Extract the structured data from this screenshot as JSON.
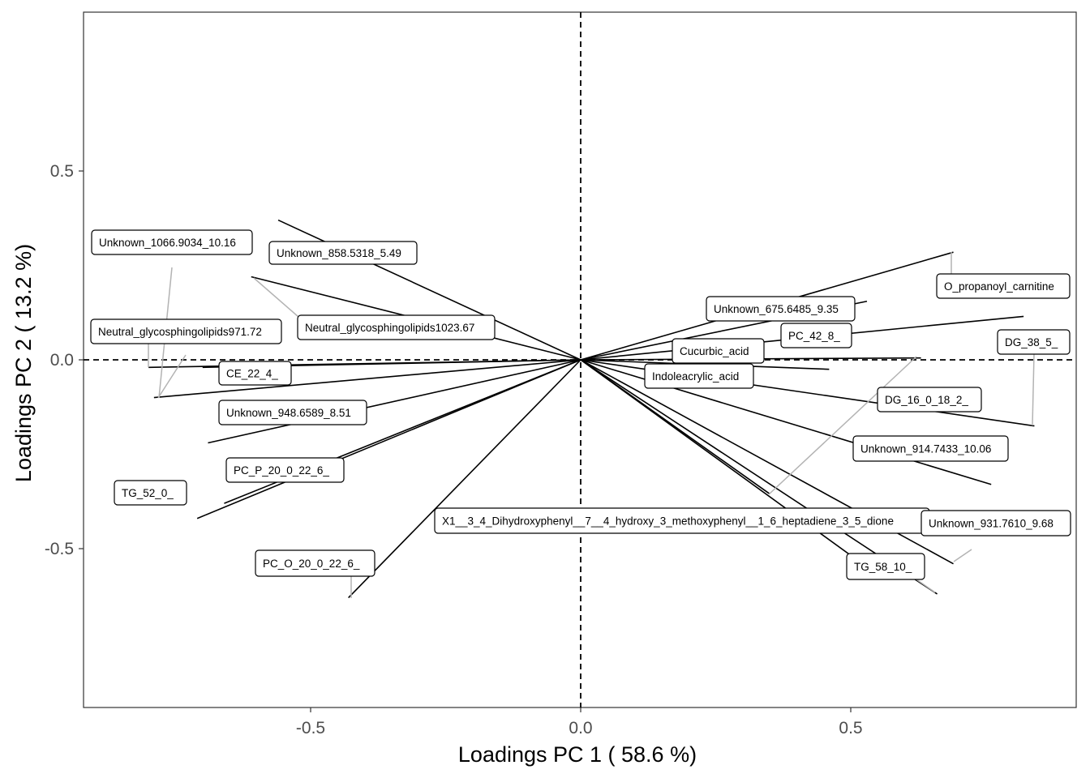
{
  "chart_data": {
    "type": "scatter",
    "subtype": "pca-loadings-biplot",
    "title": "",
    "xlabel": "Loadings PC 1 ( 58.6 %)",
    "ylabel": "Loadings PC 2 ( 13.2 %)",
    "xlim": [
      -0.92,
      0.92
    ],
    "ylim": [
      -0.92,
      0.92
    ],
    "xticks": [
      -0.5,
      0.0,
      0.5
    ],
    "xtick_labels": [
      "-0.5",
      "0.0",
      "0.5"
    ],
    "yticks": [
      -0.5,
      0.0,
      0.5
    ],
    "ytick_labels": [
      "-0.5",
      "0.0",
      "0.5"
    ],
    "grid": false,
    "reference_lines": {
      "x": 0,
      "y": 0,
      "style": "dashed"
    },
    "vectors": [
      {
        "name": "Unknown_1066.9034_10.16",
        "x": -0.79,
        "y": -0.1
      },
      {
        "name": "Unknown_858.5318_5.49",
        "x": -0.56,
        "y": 0.37
      },
      {
        "name": "Neutral_glycosphingolipids1023.67",
        "x": -0.61,
        "y": 0.22
      },
      {
        "name": "Neutral_glycosphingolipids971.72",
        "x": -0.8,
        "y": -0.02
      },
      {
        "name": "CE_22_4_",
        "x": -0.7,
        "y": -0.02
      },
      {
        "name": "Unknown_948.6589_8.51",
        "x": -0.69,
        "y": -0.22
      },
      {
        "name": "PC_P_20_0_22_6_",
        "x": -0.71,
        "y": -0.42
      },
      {
        "name": "TG_52_0_",
        "x": -0.66,
        "y": -0.38
      },
      {
        "name": "PC_O_20_0_22_6_",
        "x": -0.43,
        "y": -0.63
      },
      {
        "name": "X1__3_4_Dihydroxyphenyl__7__4_hydroxy_3_methoxyphenyl__1_6_heptadiene_3_5_dione",
        "x": 0.69,
        "y": -0.54
      },
      {
        "name": "Unknown_675.6485_9.35",
        "x": 0.53,
        "y": 0.155
      },
      {
        "name": "O_propanoyl_carnitine",
        "x": 0.69,
        "y": 0.285
      },
      {
        "name": "PC_42_8_",
        "x": 0.82,
        "y": 0.115
      },
      {
        "name": "DG_38_5_",
        "x": 0.84,
        "y": -0.175
      },
      {
        "name": "Cucurbic_acid",
        "x": 0.63,
        "y": 0.005
      },
      {
        "name": "Indoleacrylic_acid",
        "x": 0.46,
        "y": -0.025
      },
      {
        "name": "DG_16_0_18_2_",
        "x": 0.76,
        "y": -0.33
      },
      {
        "name": "Unknown_914.7433_10.06",
        "x": 0.35,
        "y": -0.355
      },
      {
        "name": "Unknown_931.7610_9.68",
        "x": 0.66,
        "y": -0.62
      },
      {
        "name": "TG_58_10_",
        "x": 0.56,
        "y": -0.58
      }
    ]
  }
}
